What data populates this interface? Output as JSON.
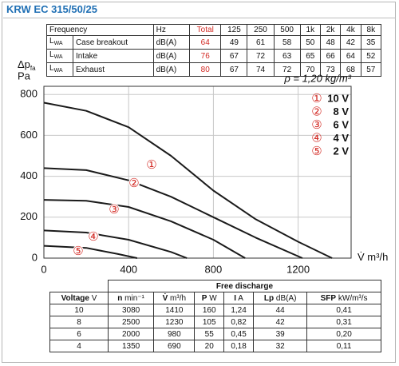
{
  "title": "KRW EC 315/50/25",
  "octave_table": {
    "headers": [
      "Frequency",
      "Hz",
      "Total",
      "125",
      "250",
      "500",
      "1k",
      "2k",
      "4k",
      "8k"
    ],
    "rows": [
      {
        "symbol": "L",
        "sub": "WA",
        "name": "Case breakout",
        "unit": "dB(A)",
        "values": [
          "64",
          "49",
          "61",
          "58",
          "50",
          "48",
          "42",
          "35"
        ]
      },
      {
        "symbol": "L",
        "sub": "WA",
        "name": "Intake",
        "unit": "dB(A)",
        "values": [
          "76",
          "67",
          "72",
          "63",
          "65",
          "66",
          "64",
          "52"
        ]
      },
      {
        "symbol": "L",
        "sub": "WA",
        "name": "Exhaust",
        "unit": "dB(A)",
        "values": [
          "80",
          "67",
          "74",
          "72",
          "70",
          "73",
          "68",
          "57"
        ]
      }
    ]
  },
  "chart_data": {
    "type": "line",
    "y_label": "Δp",
    "y_label_sub": "fa",
    "y_unit": "Pa",
    "x_label": "V̇",
    "x_unit": "m³/h",
    "note": "ρ = 1,20 kg/m³",
    "xlim": [
      0,
      1450
    ],
    "ylim": [
      0,
      840
    ],
    "xticks": [
      0,
      400,
      800,
      1200
    ],
    "yticks": [
      0,
      200,
      400,
      600,
      800
    ],
    "grid": true,
    "legend": "upper right",
    "series": [
      {
        "name": "10 V",
        "marker": "①",
        "color": "#1a1a1a",
        "x": [
          0,
          200,
          400,
          600,
          800,
          1000,
          1200,
          1360
        ],
        "y": [
          760,
          720,
          640,
          500,
          330,
          190,
          80,
          0
        ]
      },
      {
        "name": "8 V",
        "marker": "②",
        "color": "#1a1a1a",
        "x": [
          0,
          200,
          400,
          600,
          800,
          1000,
          1220
        ],
        "y": [
          440,
          430,
          380,
          300,
          200,
          100,
          0
        ]
      },
      {
        "name": "6 V",
        "marker": "③",
        "color": "#1a1a1a",
        "x": [
          0,
          200,
          400,
          600,
          800,
          950
        ],
        "y": [
          285,
          280,
          250,
          180,
          90,
          0
        ]
      },
      {
        "name": "4 V",
        "marker": "④",
        "color": "#1a1a1a",
        "x": [
          0,
          200,
          400,
          600,
          675
        ],
        "y": [
          135,
          125,
          90,
          30,
          0
        ]
      },
      {
        "name": "2 V",
        "marker": "⑤",
        "color": "#1a1a1a",
        "x": [
          0,
          200,
          350,
          440
        ],
        "y": [
          60,
          50,
          20,
          0
        ]
      }
    ]
  },
  "free_discharge_table": {
    "group": "Free discharge",
    "headers": [
      {
        "name": "Voltage",
        "unit": "V"
      },
      {
        "name": "n",
        "unit": "min⁻¹"
      },
      {
        "name": "V̇",
        "unit": "m³/h"
      },
      {
        "name": "P",
        "unit": "W"
      },
      {
        "name": "I",
        "unit": "A"
      },
      {
        "name": "Lp",
        "unit": "dB(A)"
      },
      {
        "name": "SFP",
        "unit": "kW/m³/s"
      }
    ],
    "rows": [
      [
        "10",
        "3080",
        "1410",
        "160",
        "1,24",
        "44",
        "0,41"
      ],
      [
        "8",
        "2500",
        "1230",
        "105",
        "0,82",
        "42",
        "0,31"
      ],
      [
        "6",
        "2000",
        "980",
        "55",
        "0,45",
        "39",
        "0,20"
      ],
      [
        "4",
        "1350",
        "690",
        "20",
        "0,18",
        "32",
        "0,11"
      ]
    ]
  }
}
